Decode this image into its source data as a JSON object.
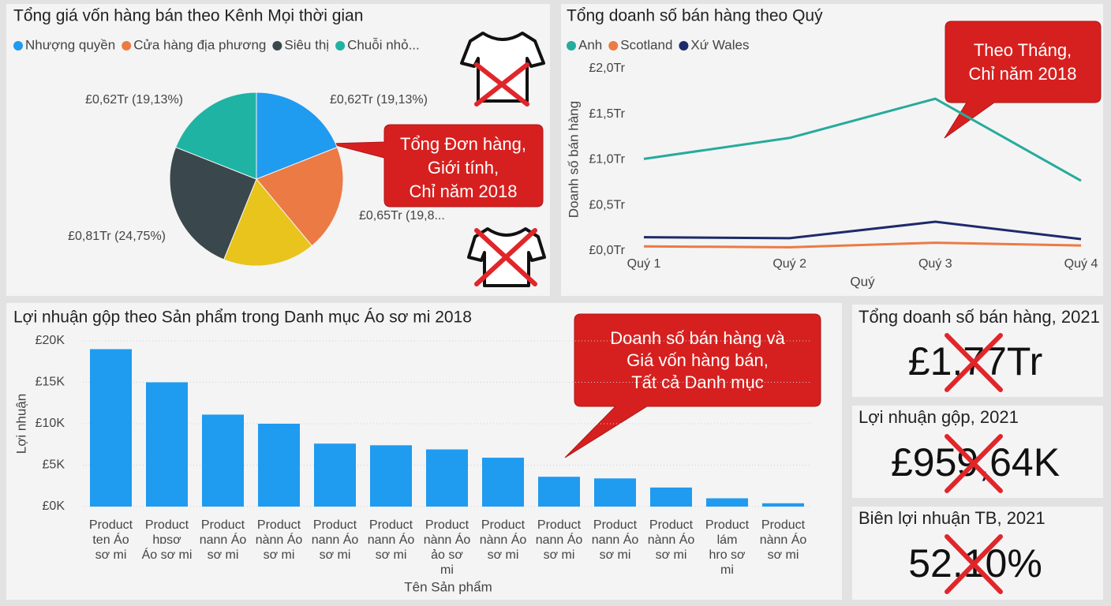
{
  "chart_data": [
    {
      "type": "pie",
      "title": "Tổng giá vốn hàng bán theo Kênh Mọi thời gian",
      "categories": [
        "Nhượng quyền",
        "Cửa hàng địa phương",
        null,
        "Siêu thị",
        "Chuỗi nhỏ..."
      ],
      "values": [
        0.62,
        0.65,
        0.56,
        0.81,
        0.62
      ],
      "value_labels": [
        "£0,62Tr (19,13%)",
        "£0,65Tr (19,8...",
        null,
        "£0,81Tr (24,75%)",
        "£0,62Tr (19,13%)"
      ],
      "colors": [
        "#1f9bf0",
        "#ec7a45",
        "#e8c41c",
        "#3a474d",
        "#1fb3a3"
      ]
    },
    {
      "type": "line",
      "title": "Tổng doanh số bán hàng theo Quý",
      "categories": [
        "Quý 1",
        "Quý 2",
        "Quý 3",
        "Quý 4"
      ],
      "series": [
        {
          "name": "Anh",
          "color": "#26ab9c",
          "values": [
            1.01,
            1.24,
            1.67,
            0.77
          ]
        },
        {
          "name": "Scotland",
          "color": "#ec7a45",
          "values": [
            0.05,
            0.04,
            0.09,
            0.06
          ]
        },
        {
          "name": "Xứ Wales",
          "color": "#1e2a6b",
          "values": [
            0.15,
            0.14,
            0.32,
            0.13
          ]
        }
      ],
      "ylim": [
        0,
        2
      ],
      "yticks": [
        {
          "value": 0,
          "label": "£0,0Tr"
        },
        {
          "value": 0.5,
          "label": "£0,5Tr"
        },
        {
          "value": 1,
          "label": "£1,0Tr"
        },
        {
          "value": 1.5,
          "label": "£1,5Tr"
        },
        {
          "value": 2,
          "label": "£2,0Tr"
        }
      ],
      "x_label": "Quý",
      "y_label": "Doanh số bán hàng"
    },
    {
      "type": "bar",
      "title": "Lợi nhuận gộp theo Sản phẩm trong Danh mục Áo sơ mi 2018",
      "categories": [
        [
          "Product",
          "ten Áo",
          "sơ mi"
        ],
        [
          "Product",
          "hɒsơ",
          "Áo sơ mi"
        ],
        [
          "Product",
          "nann Áo",
          "sơ mi"
        ],
        [
          "Product",
          "nànn Áo",
          "sơ mi"
        ],
        [
          "Product",
          "nann Áo",
          "sơ mi"
        ],
        [
          "Product",
          "nann Áo",
          "sơ mi"
        ],
        [
          "Product",
          "nànn Áo",
          "ảo sơ",
          "mi"
        ],
        [
          "Product",
          "nànn Áo",
          "sơ mi"
        ],
        [
          "Product",
          "nann Áo",
          "sơ mi"
        ],
        [
          "Product",
          "nann Áo",
          "sơ mi"
        ],
        [
          "Product",
          "nànn Áo",
          "sơ mi"
        ],
        [
          "Product",
          "lám",
          "hro sơ",
          "mi"
        ],
        [
          "Product",
          "nànn Áo",
          "sơ mi"
        ]
      ],
      "values": [
        19000,
        15000,
        11100,
        10000,
        7600,
        7400,
        6900,
        5900,
        3600,
        3400,
        2300,
        1000,
        400
      ],
      "color": "#1f9bf0",
      "ylim": [
        0,
        20000
      ],
      "yticks": [
        {
          "value": 0,
          "label": "£0K"
        },
        {
          "value": 5000,
          "label": "£5K"
        },
        {
          "value": 10000,
          "label": "£10K"
        },
        {
          "value": 15000,
          "label": "£15K"
        },
        {
          "value": 20000,
          "label": "£20K"
        }
      ],
      "grid": true,
      "x_label": "Tên Sản phẩm",
      "y_label": "Lợi nhuận"
    }
  ],
  "cards": [
    {
      "title": "Tổng doanh số bán hàng, 2021",
      "value": "£1,77Tr"
    },
    {
      "title": "Lợi nhuận gộp, 2021",
      "value": "£959,64K"
    },
    {
      "title": "Biên lợi nhuận TB, 2021",
      "value": "52,10%"
    }
  ],
  "callouts": [
    {
      "lines": [
        "Tổng Đơn hàng,",
        "Giới tính,",
        "Chỉ năm 2018"
      ]
    },
    {
      "lines": [
        "Theo Tháng,",
        "Chỉ năm 2018"
      ]
    },
    {
      "lines": [
        "Doanh số bán hàng và",
        "Giá vốn hàng bán,",
        "Tất cả Danh mục"
      ]
    }
  ]
}
